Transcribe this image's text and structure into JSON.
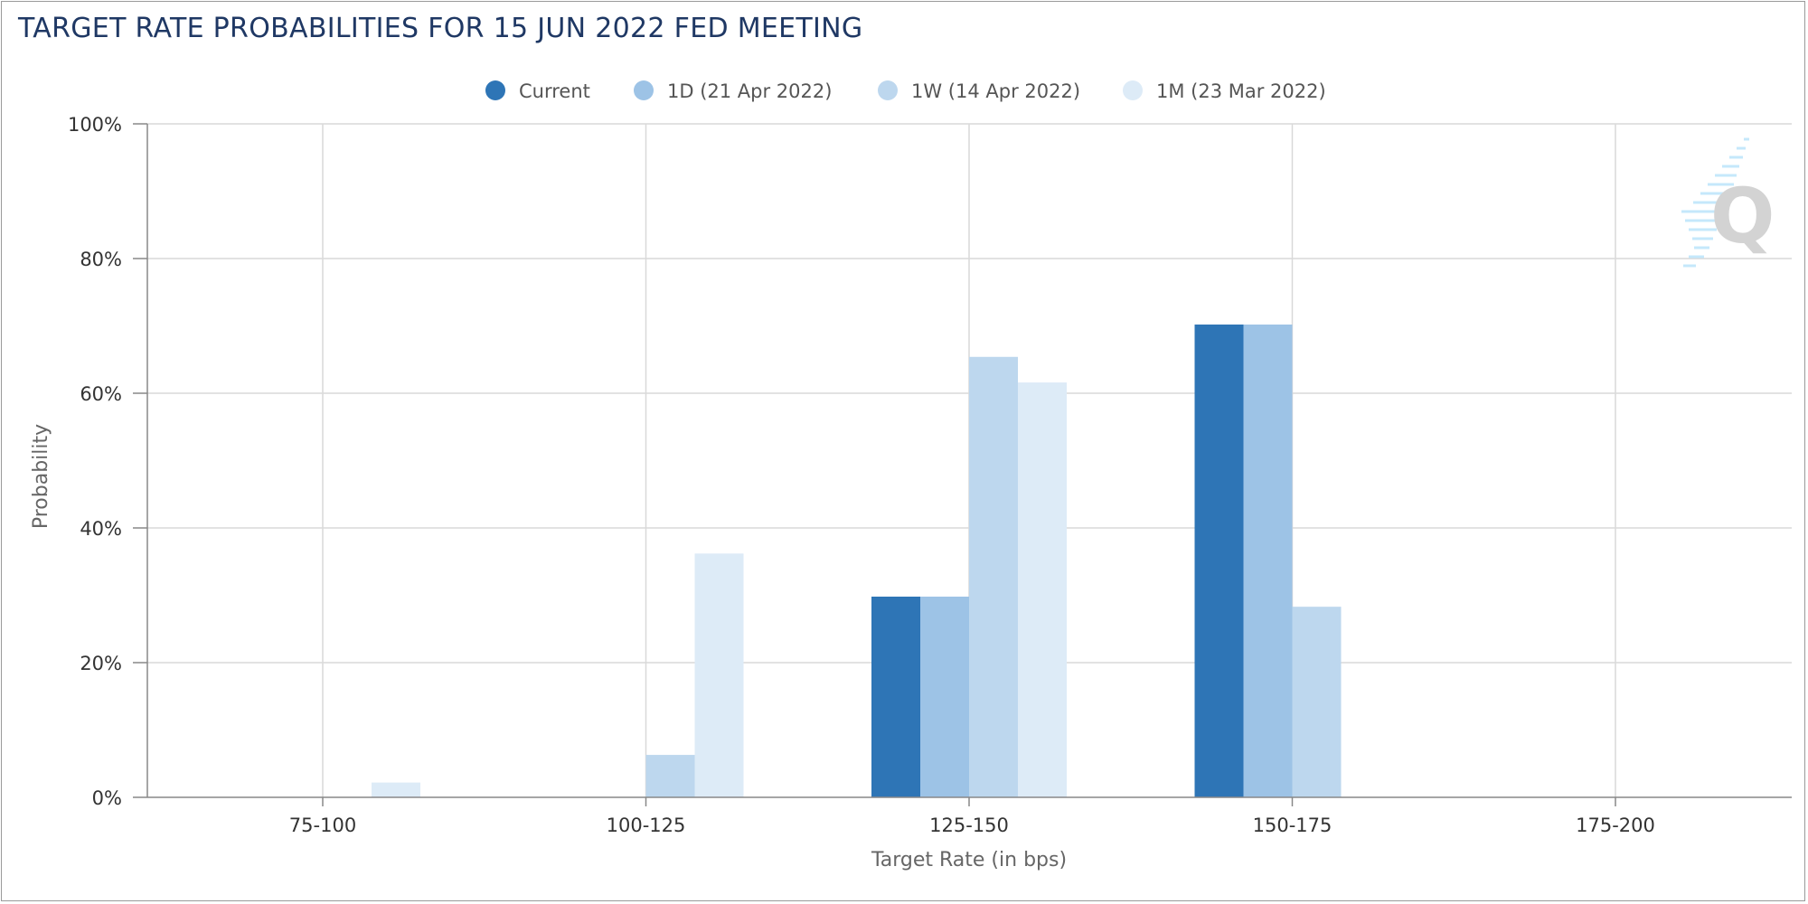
{
  "title": "TARGET RATE PROBABILITIES FOR 15 JUN 2022 FED MEETING",
  "colors": {
    "current": "#2e75b6",
    "d1": "#9dc3e6",
    "w1": "#bdd7ee",
    "m1": "#ddebf7",
    "grid": "#d9d9d9",
    "axis": "#888888"
  },
  "chart_data": {
    "type": "bar",
    "title": "TARGET RATE PROBABILITIES FOR 15 JUN 2022 FED MEETING",
    "xlabel": "Target Rate (in bps)",
    "ylabel": "Probability",
    "categories": [
      "75-100",
      "100-125",
      "125-150",
      "150-175",
      "175-200"
    ],
    "ylim": [
      0,
      100
    ],
    "yticks": [
      0,
      20,
      40,
      60,
      80,
      100
    ],
    "ytick_labels": [
      "0%",
      "20%",
      "40%",
      "60%",
      "80%",
      "100%"
    ],
    "grid": true,
    "legend_position": "top-center",
    "series": [
      {
        "name": "Current",
        "values": [
          0,
          0,
          29.8,
          70.2,
          0
        ]
      },
      {
        "name": "1D (21 Apr 2022)",
        "values": [
          0,
          0,
          29.8,
          70.2,
          0
        ]
      },
      {
        "name": "1W (14 Apr 2022)",
        "values": [
          0,
          6.3,
          65.4,
          28.3,
          0
        ]
      },
      {
        "name": "1M (23 Mar 2022)",
        "values": [
          2.2,
          36.2,
          61.6,
          0,
          0
        ]
      }
    ]
  }
}
